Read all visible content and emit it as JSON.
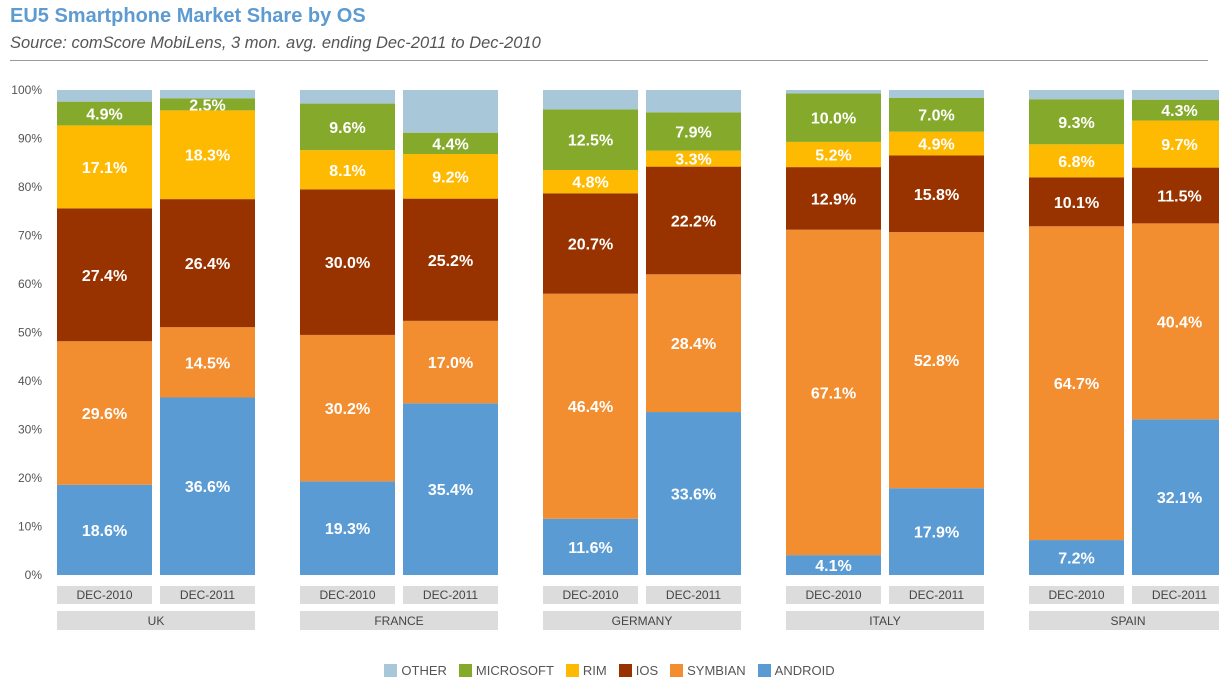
{
  "title": "EU5 Smartphone Market Share by OS",
  "subtitle": "Source: comScore MobiLens, 3 mon. avg. ending Dec-2011 to Dec-2010",
  "chart_data": {
    "type": "bar",
    "stacked": true,
    "title": "EU5 Smartphone Market Share by OS",
    "ylim": [
      0,
      100
    ],
    "y_ticks": [
      "0%",
      "10%",
      "20%",
      "30%",
      "40%",
      "50%",
      "60%",
      "70%",
      "80%",
      "90%",
      "100%"
    ],
    "groups": [
      {
        "name": "UK",
        "bars": [
          {
            "label": "DEC-2010",
            "values": [
              18.6,
              29.6,
              27.4,
              17.1,
              4.9,
              2.4
            ],
            "labels": [
              "18.6%",
              "29.6%",
              "27.4%",
              "17.1%",
              "4.9%",
              ""
            ]
          },
          {
            "label": "DEC-2011",
            "values": [
              36.6,
              14.5,
              26.4,
              18.3,
              2.5,
              1.7
            ],
            "labels": [
              "36.6%",
              "14.5%",
              "26.4%",
              "18.3%",
              "2.5%",
              ""
            ]
          }
        ]
      },
      {
        "name": "FRANCE",
        "bars": [
          {
            "label": "DEC-2010",
            "values": [
              19.3,
              30.2,
              30.0,
              8.1,
              9.6,
              2.8
            ],
            "labels": [
              "19.3%",
              "30.2%",
              "30.0%",
              "8.1%",
              "9.6%",
              ""
            ]
          },
          {
            "label": "DEC-2011",
            "values": [
              35.4,
              17.0,
              25.2,
              9.2,
              4.4,
              8.8
            ],
            "labels": [
              "35.4%",
              "17.0%",
              "25.2%",
              "9.2%",
              "4.4%",
              ""
            ]
          }
        ]
      },
      {
        "name": "GERMANY",
        "bars": [
          {
            "label": "DEC-2010",
            "values": [
              11.6,
              46.4,
              20.7,
              4.8,
              12.5,
              4.0
            ],
            "labels": [
              "11.6%",
              "46.4%",
              "20.7%",
              "4.8%",
              "12.5%",
              ""
            ]
          },
          {
            "label": "DEC-2011",
            "values": [
              33.6,
              28.4,
              22.2,
              3.3,
              7.9,
              4.6
            ],
            "labels": [
              "33.6%",
              "28.4%",
              "22.2%",
              "3.3%",
              "7.9%",
              ""
            ]
          }
        ]
      },
      {
        "name": "ITALY",
        "bars": [
          {
            "label": "DEC-2010",
            "values": [
              4.1,
              67.1,
              12.9,
              5.2,
              10.0,
              0.7
            ],
            "labels": [
              "4.1%",
              "67.1%",
              "12.9%",
              "5.2%",
              "10.0%",
              ""
            ]
          },
          {
            "label": "DEC-2011",
            "values": [
              17.9,
              52.8,
              15.8,
              4.9,
              7.0,
              1.6
            ],
            "labels": [
              "17.9%",
              "52.8%",
              "15.8%",
              "4.9%",
              "7.0%",
              ""
            ]
          }
        ]
      },
      {
        "name": "SPAIN",
        "bars": [
          {
            "label": "DEC-2010",
            "values": [
              7.2,
              64.7,
              10.1,
              6.8,
              9.3,
              1.9
            ],
            "labels": [
              "7.2%",
              "64.7%",
              "10.1%",
              "6.8%",
              "9.3%",
              ""
            ]
          },
          {
            "label": "DEC-2011",
            "values": [
              32.1,
              40.4,
              11.5,
              9.7,
              4.3,
              2.0
            ],
            "labels": [
              "32.1%",
              "40.4%",
              "11.5%",
              "9.7%",
              "4.3%",
              ""
            ]
          }
        ]
      }
    ],
    "series": [
      {
        "name": "ANDROID",
        "color": "#5a9bd3"
      },
      {
        "name": "SYMBIAN",
        "color": "#f28d30"
      },
      {
        "name": "IOS",
        "color": "#983300"
      },
      {
        "name": "RIM",
        "color": "#feb901"
      },
      {
        "name": "MICROSOFT",
        "color": "#85a92b"
      },
      {
        "name": "OTHER",
        "color": "#a8c7d8"
      }
    ],
    "legend": [
      "OTHER",
      "MICROSOFT",
      "RIM",
      "IOS",
      "SYMBIAN",
      "ANDROID"
    ],
    "legend_position": "bottom",
    "grid": false
  }
}
